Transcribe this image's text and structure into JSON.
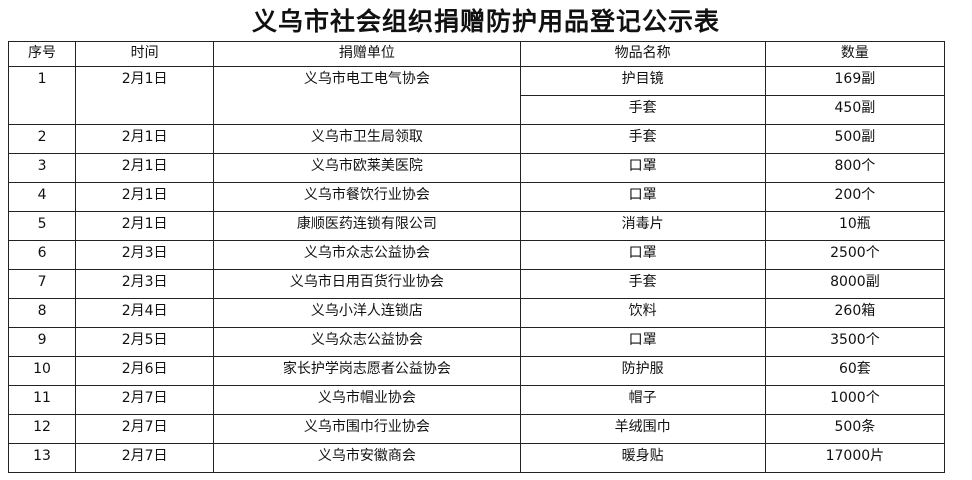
{
  "title": "义乌市社会组织捐赠防护用品登记公示表",
  "headers": [
    "序号",
    "时间",
    "捐赠单位",
    "物品名称",
    "数量"
  ],
  "first_row": {
    "no": "1",
    "date": "2月1日",
    "donor": "义乌市电工电气协会",
    "items": [
      {
        "item": "护目镜",
        "qty": "169副"
      },
      {
        "item": "手套",
        "qty": "450副"
      }
    ]
  },
  "rows": [
    {
      "no": "2",
      "date": "2月1日",
      "donor": "义乌市卫生局领取",
      "item": "手套",
      "qty": "500副"
    },
    {
      "no": "3",
      "date": "2月1日",
      "donor": "义乌市欧莱美医院",
      "item": "口罩",
      "qty": "800个"
    },
    {
      "no": "4",
      "date": "2月1日",
      "donor": "义乌市餐饮行业协会",
      "item": "口罩",
      "qty": "200个"
    },
    {
      "no": "5",
      "date": "2月1日",
      "donor": "康顺医药连锁有限公司",
      "item": "消毒片",
      "qty": "10瓶"
    },
    {
      "no": "6",
      "date": "2月3日",
      "donor": "义乌市众志公益协会",
      "item": "口罩",
      "qty": "2500个"
    },
    {
      "no": "7",
      "date": "2月3日",
      "donor": "义乌市日用百货行业协会",
      "item": "手套",
      "qty": "8000副"
    },
    {
      "no": "8",
      "date": "2月4日",
      "donor": "义乌小洋人连锁店",
      "item": "饮料",
      "qty": "260箱"
    },
    {
      "no": "9",
      "date": "2月5日",
      "donor": "义乌众志公益协会",
      "item": "口罩",
      "qty": "3500个"
    },
    {
      "no": "10",
      "date": "2月6日",
      "donor": "家长护学岗志愿者公益协会",
      "item": "防护服",
      "qty": "60套"
    },
    {
      "no": "11",
      "date": "2月7日",
      "donor": "义乌市帽业协会",
      "item": "帽子",
      "qty": "1000个"
    },
    {
      "no": "12",
      "date": "2月7日",
      "donor": "义乌市围巾行业协会",
      "item": "羊绒围巾",
      "qty": "500条"
    },
    {
      "no": "13",
      "date": "2月7日",
      "donor": "义乌市安徽商会",
      "item": "暖身贴",
      "qty": "17000片"
    }
  ]
}
